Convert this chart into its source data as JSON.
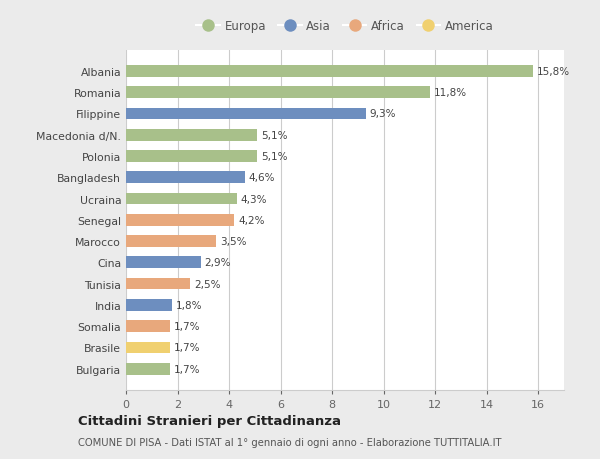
{
  "countries": [
    "Albania",
    "Romania",
    "Filippine",
    "Macedonia d/N.",
    "Polonia",
    "Bangladesh",
    "Ucraina",
    "Senegal",
    "Marocco",
    "Cina",
    "Tunisia",
    "India",
    "Somalia",
    "Brasile",
    "Bulgaria"
  ],
  "values": [
    15.8,
    11.8,
    9.3,
    5.1,
    5.1,
    4.6,
    4.3,
    4.2,
    3.5,
    2.9,
    2.5,
    1.8,
    1.7,
    1.7,
    1.7
  ],
  "labels": [
    "15,8%",
    "11,8%",
    "9,3%",
    "5,1%",
    "5,1%",
    "4,6%",
    "4,3%",
    "4,2%",
    "3,5%",
    "2,9%",
    "2,5%",
    "1,8%",
    "1,7%",
    "1,7%",
    "1,7%"
  ],
  "continents": [
    "Europa",
    "Europa",
    "Asia",
    "Europa",
    "Europa",
    "Asia",
    "Europa",
    "Africa",
    "Africa",
    "Asia",
    "Africa",
    "Asia",
    "Africa",
    "America",
    "Europa"
  ],
  "colors": {
    "Europa": "#a8c08a",
    "Asia": "#6d8ebf",
    "Africa": "#e8a87c",
    "America": "#f0d070"
  },
  "legend_order": [
    "Europa",
    "Asia",
    "Africa",
    "America"
  ],
  "title": "Cittadini Stranieri per Cittadinanza",
  "subtitle": "COMUNE DI PISA - Dati ISTAT al 1° gennaio di ogni anno - Elaborazione TUTTITALIA.IT",
  "xlim": [
    0,
    17.0
  ],
  "xticks": [
    0,
    2,
    4,
    6,
    8,
    10,
    12,
    14,
    16
  ],
  "bg_color": "#ebebeb",
  "bar_area_color": "#ffffff"
}
